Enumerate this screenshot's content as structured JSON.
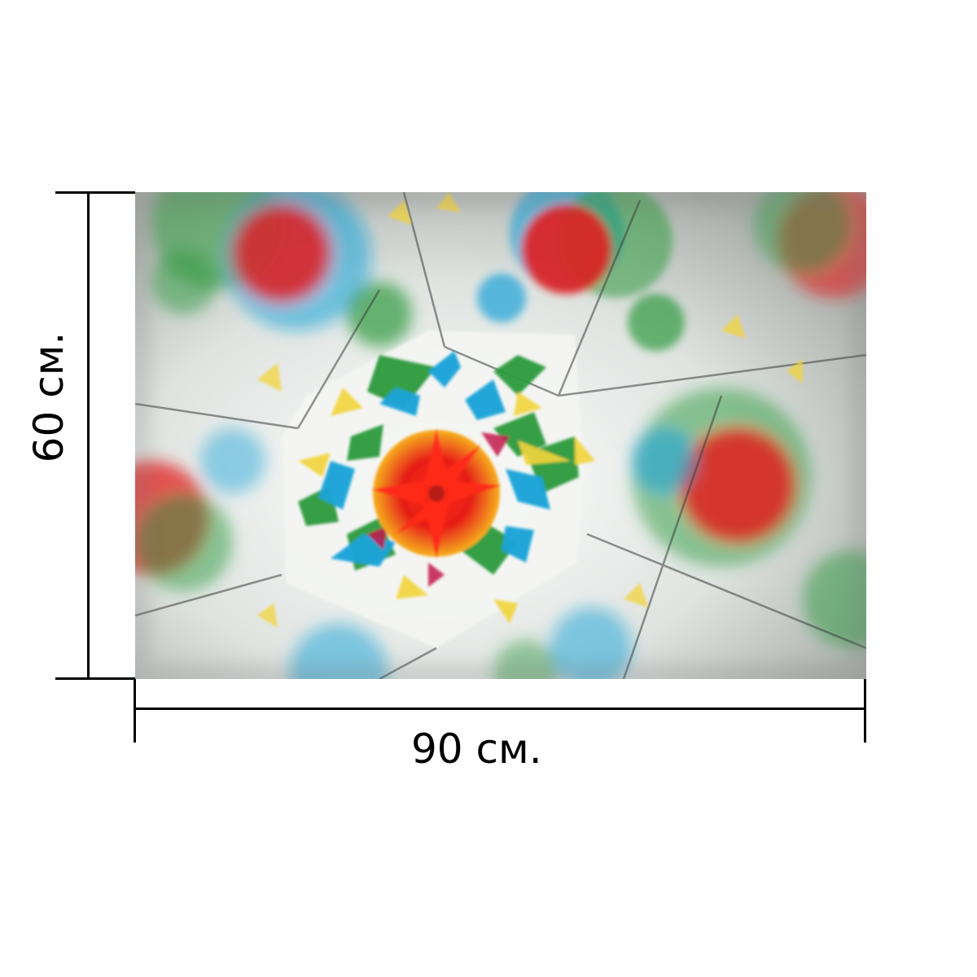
{
  "dimensions": {
    "width_label": "90 см.",
    "height_label": "60 см."
  },
  "artwork": {
    "subject": "kaleidoscope-pattern",
    "colors": {
      "red": "#e21f1f",
      "blue": "#1aa3d9",
      "green": "#2d9a3e",
      "yellow": "#f2d43a",
      "white": "#f4f5f3",
      "dark": "#3a3d3b"
    }
  }
}
